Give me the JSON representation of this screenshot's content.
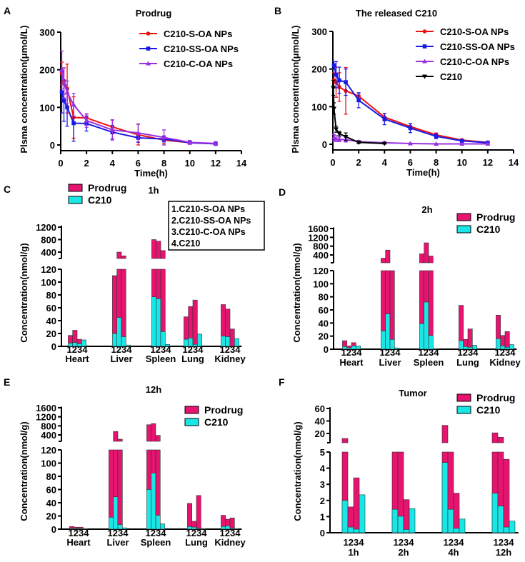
{
  "colors": {
    "s_oa": "#ee1111",
    "ss_oa": "#1a1ae6",
    "c_oa": "#9b30e0",
    "c210_line": "#000000",
    "prodrug": "#e6136f",
    "c210_bar": "#19e6e6"
  },
  "chart_data": [
    {
      "panel": "A",
      "type": "line",
      "title": "Prodrug",
      "xlabel": "Time(h)",
      "ylabel": "Plsma concentration(μmol/L)",
      "xlim": [
        0,
        14
      ],
      "ylim": [
        0,
        300
      ],
      "xticks": [
        "0",
        "2",
        "4",
        "6",
        "8",
        "10",
        "12",
        "14"
      ],
      "yticks": [
        "0",
        "100",
        "200",
        "300"
      ],
      "legend": "top-right",
      "series": [
        {
          "name": "C210-S-OA NPs",
          "color": "s_oa",
          "marker": "circle",
          "x": [
            0.083,
            0.25,
            0.5,
            1,
            2,
            4,
            6,
            8,
            10,
            12
          ],
          "y": [
            190,
            170,
            150,
            73,
            72,
            48,
            27,
            13,
            6,
            3
          ],
          "err": [
            30,
            35,
            65,
            55,
            10,
            18,
            28,
            10,
            4,
            3
          ]
        },
        {
          "name": "C210-SS-OA NPs",
          "color": "ss_oa",
          "marker": "square",
          "x": [
            0.083,
            0.25,
            0.5,
            1,
            2,
            4,
            6,
            8,
            10,
            12
          ],
          "y": [
            140,
            118,
            100,
            58,
            57,
            34,
            19,
            16,
            6,
            3
          ],
          "err": [
            55,
            55,
            50,
            48,
            20,
            18,
            12,
            8,
            3,
            2
          ]
        },
        {
          "name": "C210-C-OA  NPs",
          "color": "c_oa",
          "marker": "triangle",
          "x": [
            0.083,
            0.25,
            0.5,
            1,
            2,
            4,
            6,
            8,
            10,
            12
          ],
          "y": [
            200,
            165,
            140,
            107,
            65,
            40,
            32,
            20,
            7,
            4
          ],
          "err": [
            50,
            40,
            30,
            30,
            18,
            27,
            24,
            20,
            5,
            5
          ]
        }
      ]
    },
    {
      "panel": "B",
      "type": "line",
      "title": "The released C210",
      "xlabel": "Time(h)",
      "ylabel": "Plsma concentration(μmol/L)",
      "xlim": [
        0,
        14
      ],
      "ylim": [
        0,
        300
      ],
      "xticks": [
        "0",
        "2",
        "4",
        "6",
        "8",
        "10",
        "12",
        "14"
      ],
      "yticks": [
        "0",
        "100",
        "200",
        "300"
      ],
      "legend": "top-right",
      "series": [
        {
          "name": "C210-S-OA NPs",
          "color": "s_oa",
          "marker": "circle",
          "x": [
            0.083,
            0.25,
            0.5,
            1,
            2,
            4,
            6,
            8,
            10,
            12
          ],
          "y": [
            170,
            165,
            152,
            142,
            128,
            72,
            47,
            25,
            11,
            5
          ],
          "err": [
            20,
            40,
            38,
            62,
            8,
            10,
            8,
            5,
            3,
            2
          ]
        },
        {
          "name": "C210-SS-OA NPs",
          "color": "ss_oa",
          "marker": "square",
          "x": [
            0.083,
            0.25,
            0.5,
            1,
            2,
            4,
            6,
            8,
            10,
            12
          ],
          "y": [
            210,
            185,
            170,
            165,
            117,
            67,
            43,
            21,
            9,
            4
          ],
          "err": [
            10,
            35,
            35,
            35,
            20,
            15,
            12,
            6,
            3,
            2
          ]
        },
        {
          "name": "C210-C-OA NPs",
          "color": "c_oa",
          "marker": "triangle",
          "x": [
            0.083,
            0.25,
            0.5,
            1,
            2,
            4,
            6,
            8,
            10,
            12
          ],
          "y": [
            18,
            15,
            13,
            12,
            7,
            4,
            2,
            1,
            1,
            1
          ],
          "err": [
            8,
            8,
            6,
            6,
            3,
            2,
            1,
            1,
            1,
            1
          ]
        },
        {
          "name": "C210",
          "color": "c210_line",
          "marker": "down-triangle",
          "x": [
            0.033,
            0.083,
            0.25,
            0.5,
            1,
            2,
            4
          ],
          "y": [
            150,
            95,
            40,
            28,
            20,
            5,
            2
          ],
          "err": [
            20,
            15,
            8,
            6,
            10,
            3,
            1
          ]
        }
      ]
    },
    {
      "panel": "C",
      "type": "bar",
      "title": "1h",
      "ylabel": "Concentration(nmol/g)",
      "stacked": true,
      "legend_entries": [
        "Prodrug",
        "C210"
      ],
      "note": [
        "1.C210-S-OA  NPs",
        "2.C210-SS-OA  NPs",
        "3.C210-C-OA  NPs",
        "4.C210"
      ],
      "yticks_lower": [
        "0",
        "20",
        "40",
        "60",
        "80",
        "100",
        "120"
      ],
      "yticks_upper": [
        "400",
        "800",
        "1200"
      ],
      "categories": [
        "Heart",
        "Liver",
        "Spleen",
        "Lung",
        "Kidney"
      ],
      "bar_labels": "1234",
      "series": [
        {
          "name": "C210",
          "values": [
            [
              5,
              6,
              4,
              10
            ],
            [
              20,
              45,
              15,
              2
            ],
            [
              77,
              74,
              23,
              3
            ],
            [
              11,
              13,
              3,
              19
            ],
            [
              16,
              15,
              0,
              12
            ]
          ]
        },
        {
          "name": "Prodrug",
          "values": [
            [
              12,
              19,
              7,
              0
            ],
            [
              90,
              355,
              265,
              0
            ],
            [
              723,
              676,
              427,
              0
            ],
            [
              35,
              49,
              69,
              0
            ],
            [
              49,
              43,
              27,
              0
            ]
          ]
        }
      ]
    },
    {
      "panel": "D",
      "type": "bar",
      "title": "2h",
      "ylabel": "Concentration(nmol/g)",
      "stacked": true,
      "legend_entries": [
        "Prodrug",
        "C210"
      ],
      "yticks_lower": [
        "0",
        "20",
        "40",
        "60",
        "80",
        "100",
        "120"
      ],
      "yticks_upper": [
        "400",
        "800",
        "1200",
        "1600"
      ],
      "categories": [
        "Heart",
        "Liver",
        "Spleen",
        "Lung",
        "Kidney"
      ],
      "bar_labels": "1234",
      "series": [
        {
          "name": "C210",
          "values": [
            [
              4,
              2,
              5,
              5
            ],
            [
              28,
              54,
              15,
              2
            ],
            [
              39,
              72,
              21,
              1
            ],
            [
              13,
              4,
              3,
              6
            ],
            [
              16,
              5,
              3,
              7
            ]
          ]
        },
        {
          "name": "Prodrug",
          "values": [
            [
              9,
              3,
              5,
              0
            ],
            [
              222,
              566,
              165,
              0
            ],
            [
              411,
              878,
              329,
              0
            ],
            [
              54,
              11,
              28,
              0
            ],
            [
              36,
              16,
              24,
              0
            ]
          ]
        }
      ]
    },
    {
      "panel": "E",
      "type": "bar",
      "title": "12h",
      "ylabel": "Concentration(nmol/g)",
      "stacked": true,
      "legend_entries": [
        "Prodrug",
        "C210"
      ],
      "yticks_lower": [
        "0",
        "20",
        "40",
        "60",
        "80",
        "100",
        "120"
      ],
      "yticks_upper": [
        "400",
        "800",
        "1200",
        "1600"
      ],
      "categories": [
        "Heart",
        "Liver",
        "Spleen",
        "Lung",
        "Kidney"
      ],
      "bar_labels": "1234",
      "series": [
        {
          "name": "C210",
          "values": [
            [
              1,
              1,
              1,
              1
            ],
            [
              18,
              49,
              7,
              2
            ],
            [
              60,
              85,
              21,
              8
            ],
            [
              4,
              3,
              1,
              1
            ],
            [
              4,
              5,
              1,
              1
            ]
          ]
        },
        {
          "name": "Prodrug",
          "values": [
            [
              3,
              2,
              2,
              0
            ],
            [
              152,
              501,
              203,
              0
            ],
            [
              790,
              815,
              359,
              0
            ],
            [
              35,
              9,
              50,
              0
            ],
            [
              17,
              10,
              16,
              0
            ]
          ]
        }
      ]
    },
    {
      "panel": "F",
      "type": "bar",
      "title": "Tumor",
      "ylabel": "Concentration(nmol/g)",
      "stacked": false,
      "legend_entries": [
        "Prodrug",
        "C210"
      ],
      "yticks_lower": [
        "0",
        "1",
        "2",
        "3",
        "4",
        "5"
      ],
      "yticks_upper": [
        "20",
        "40",
        "60"
      ],
      "categories": [
        "1h",
        "2h",
        "4h",
        "12h"
      ],
      "bar_labels": "1234",
      "series": [
        {
          "name": "Prodrug",
          "values": [
            [
              12,
              1.6,
              3.4,
              0
            ],
            [
              6,
              6,
              2.05,
              0
            ],
            [
              33,
              6,
              2.45,
              0
            ],
            [
              21,
              14,
              4.55,
              0
            ]
          ]
        },
        {
          "name": "C210",
          "values": [
            [
              2.0,
              0.35,
              0.22,
              2.35
            ],
            [
              1.45,
              1.02,
              0.2,
              1.5
            ],
            [
              4.35,
              1.45,
              0.27,
              0.85
            ],
            [
              2.45,
              1.65,
              0.35,
              0.72
            ]
          ]
        }
      ]
    }
  ]
}
